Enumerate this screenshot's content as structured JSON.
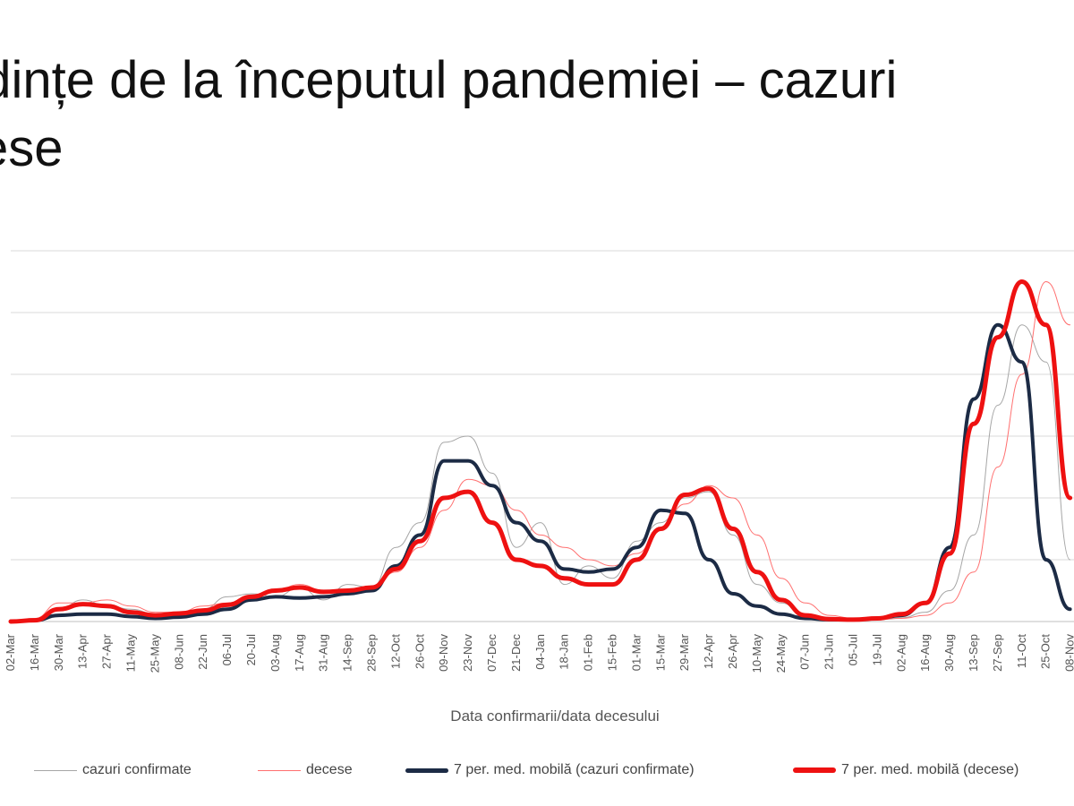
{
  "slide": {
    "title_line1": "ndințe de la începutul pandemiei – cazuri",
    "title_line2": "cese"
  },
  "chart_data": {
    "type": "line",
    "xlabel": "Data confirmarii/data decesului",
    "ylabel": "",
    "grid": true,
    "legend_position": "bottom",
    "categories": [
      "02-Mar",
      "16-Mar",
      "30-Mar",
      "13-Apr",
      "27-Apr",
      "11-May",
      "25-May",
      "08-Jun",
      "22-Jun",
      "06-Jul",
      "20-Jul",
      "03-Aug",
      "17-Aug",
      "31-Aug",
      "14-Sep",
      "28-Sep",
      "12-Oct",
      "26-Oct",
      "09-Nov",
      "23-Nov",
      "07-Dec",
      "21-Dec",
      "04-Jan",
      "18-Jan",
      "01-Feb",
      "15-Feb",
      "01-Mar",
      "15-Mar",
      "29-Mar",
      "12-Apr",
      "26-Apr",
      "10-May",
      "24-May",
      "07-Jun",
      "21-Jun",
      "05-Jul",
      "19-Jul",
      "02-Aug",
      "16-Aug",
      "30-Aug",
      "13-Sep",
      "27-Sep",
      "11-Oct",
      "25-Oct",
      "08-Nov"
    ],
    "ylim": [
      0,
      6
    ],
    "series": [
      {
        "name": "cazuri confirmate",
        "color": "#a6a6a6",
        "style": "thin",
        "values": [
          0.0,
          0.05,
          0.2,
          0.35,
          0.25,
          0.2,
          0.12,
          0.12,
          0.2,
          0.4,
          0.45,
          0.4,
          0.55,
          0.35,
          0.6,
          0.55,
          1.2,
          1.6,
          2.9,
          3.0,
          2.4,
          1.2,
          1.6,
          0.6,
          0.9,
          0.7,
          1.3,
          1.6,
          2.0,
          2.1,
          1.4,
          0.6,
          0.3,
          0.1,
          0.05,
          0.03,
          0.03,
          0.06,
          0.15,
          0.5,
          1.4,
          3.5,
          4.8,
          4.2,
          1.0
        ]
      },
      {
        "name": "decese",
        "color": "#ff7070",
        "style": "thin",
        "values": [
          0.0,
          0.05,
          0.3,
          0.3,
          0.35,
          0.25,
          0.15,
          0.15,
          0.25,
          0.3,
          0.4,
          0.5,
          0.6,
          0.5,
          0.5,
          0.55,
          0.8,
          1.2,
          1.8,
          2.3,
          2.2,
          1.8,
          1.4,
          1.2,
          1.0,
          0.9,
          1.1,
          1.5,
          1.9,
          2.2,
          2.0,
          1.4,
          0.7,
          0.3,
          0.1,
          0.05,
          0.03,
          0.05,
          0.1,
          0.3,
          0.8,
          2.5,
          4.0,
          5.5,
          4.8
        ]
      },
      {
        "name": "7 per. med. mobilă (cazuri confirmate)",
        "color": "#1c2b45",
        "style": "thick",
        "values": [
          0.0,
          0.02,
          0.1,
          0.12,
          0.12,
          0.08,
          0.05,
          0.07,
          0.12,
          0.2,
          0.35,
          0.4,
          0.38,
          0.4,
          0.45,
          0.5,
          0.9,
          1.4,
          2.6,
          2.6,
          2.2,
          1.6,
          1.3,
          0.85,
          0.8,
          0.85,
          1.2,
          1.8,
          1.75,
          1.0,
          0.45,
          0.25,
          0.12,
          0.05,
          0.03,
          0.03,
          0.05,
          0.1,
          0.3,
          1.2,
          3.6,
          4.8,
          4.2,
          1.0,
          0.2
        ]
      },
      {
        "name": "7 per. med. mobilă (decese)",
        "color": "#ee1111",
        "style": "thick",
        "values": [
          0.0,
          0.02,
          0.2,
          0.28,
          0.25,
          0.15,
          0.1,
          0.13,
          0.18,
          0.27,
          0.4,
          0.5,
          0.55,
          0.48,
          0.5,
          0.55,
          0.85,
          1.3,
          2.0,
          2.1,
          1.6,
          1.0,
          0.9,
          0.7,
          0.6,
          0.6,
          1.0,
          1.5,
          2.05,
          2.15,
          1.5,
          0.8,
          0.35,
          0.1,
          0.04,
          0.03,
          0.05,
          0.12,
          0.3,
          1.1,
          3.2,
          4.6,
          5.5,
          4.8,
          2.0
        ]
      }
    ]
  }
}
